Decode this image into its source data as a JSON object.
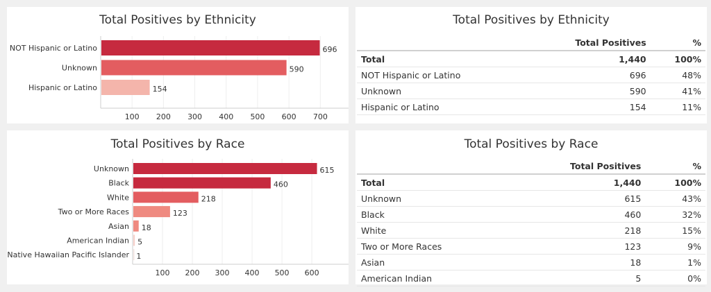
{
  "chart_data": [
    {
      "type": "bar",
      "orientation": "horizontal",
      "title": "Total Positives by Ethnicity",
      "categories": [
        "NOT Hispanic or Latino",
        "Unknown",
        "Hispanic or Latino"
      ],
      "values": [
        696,
        590,
        154
      ],
      "colors": [
        "#c62a3f",
        "#e35d60",
        "#f4b5ab"
      ],
      "xticks": [
        100,
        200,
        300,
        400,
        500,
        600,
        700
      ],
      "xlim": [
        0,
        790
      ],
      "grid": true
    },
    {
      "type": "bar",
      "orientation": "horizontal",
      "title": "Total Positives by Race",
      "categories": [
        "Unknown",
        "Black",
        "White",
        "Two or More Races",
        "Asian",
        "American Indian",
        "Native Hawaiian Pacific Islander"
      ],
      "values": [
        615,
        460,
        218,
        123,
        18,
        5,
        1
      ],
      "colors": [
        "#c62a3f",
        "#c62a3f",
        "#e35d60",
        "#ef8a80",
        "#ef8a80",
        "#f6cfc9",
        "#f3e3e0"
      ],
      "xticks": [
        100,
        200,
        300,
        400,
        500,
        600
      ],
      "xlim": [
        0,
        723
      ],
      "grid": true
    }
  ],
  "tables": [
    {
      "title": "Total Positives by Ethnicity",
      "headers": [
        "",
        "Total Positives",
        "%"
      ],
      "rows": [
        [
          "Total",
          "1,440",
          "100%"
        ],
        [
          "NOT Hispanic or Latino",
          "696",
          "48%"
        ],
        [
          "Unknown",
          "590",
          "41%"
        ],
        [
          "Hispanic or Latino",
          "154",
          "11%"
        ]
      ]
    },
    {
      "title": "Total Positives by Race",
      "headers": [
        "",
        "Total Positives",
        "%"
      ],
      "rows": [
        [
          "Total",
          "1,440",
          "100%"
        ],
        [
          "Unknown",
          "615",
          "43%"
        ],
        [
          "Black",
          "460",
          "32%"
        ],
        [
          "White",
          "218",
          "15%"
        ],
        [
          "Two or More Races",
          "123",
          "9%"
        ],
        [
          "Asian",
          "18",
          "1%"
        ],
        [
          "American Indian",
          "5",
          "0%"
        ]
      ]
    }
  ]
}
